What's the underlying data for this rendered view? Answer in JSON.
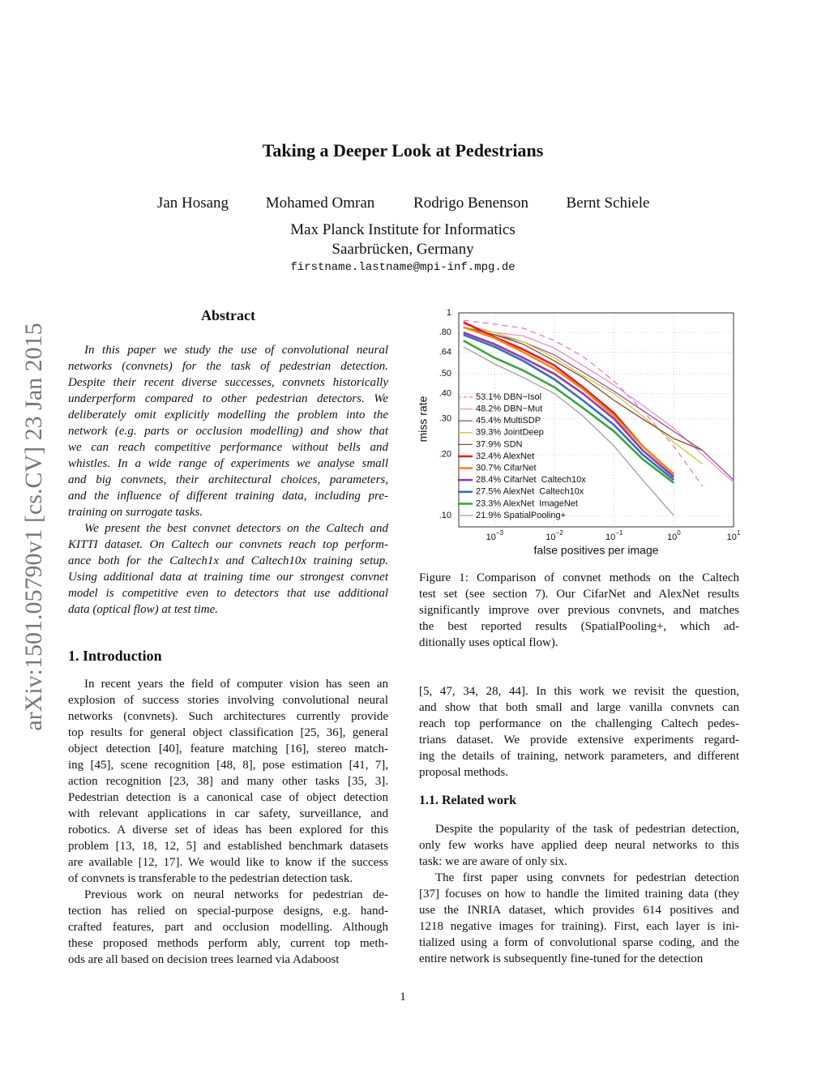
{
  "header": {
    "title": "Taking a Deeper Look at Pedestrians",
    "authors": [
      "Jan Hosang",
      "Mohamed Omran",
      "Rodrigo Benenson",
      "Bernt Schiele"
    ],
    "affiliation": [
      "Max Planck Institute for Informatics",
      "Saarbrücken, Germany"
    ],
    "email": "firstname.lastname@mpi-inf.mpg.de"
  },
  "sidebar": "arXiv:1501.05790v1  [cs.CV]  23 Jan 2015",
  "abstract": {
    "heading": "Abstract",
    "paragraphs": [
      [
        "In this paper we study the use of convolutional neural",
        "networks (convnets) for the task of pedestrian detection.",
        "Despite their recent diverse successes, convnets historically",
        "underperform compared to other pedestrian detectors. We",
        "deliberately omit explicitly modelling the problem into the",
        "network (e.g. parts or occlusion modelling) and show that",
        "we can reach competitive performance without bells and",
        "whistles. In a wide range of experiments we analyse small",
        "and big convnets, their architectural choices, parameters,",
        "and the influence of different training data, including pre-",
        "training on surrogate tasks."
      ],
      [
        "We present the best convnet detectors on the Caltech and",
        "KITTI dataset. On Caltech our convnets reach top perform-",
        "ance both for the Caltech1x and Caltech10x training setup.",
        "Using additional data at training time our strongest convnet",
        "model is competitive even to detectors that use additional",
        "data (optical flow) at test time."
      ]
    ]
  },
  "introduction": {
    "heading": "1. Introduction",
    "paragraphs": [
      [
        "In recent years the field of computer vision has seen an",
        "explosion of success stories involving convolutional neural",
        "networks (convnets). Such architectures currently provide",
        "top results for general object classification [25, 36], general",
        "object detection [40], feature matching [16], stereo match-",
        "ing [45], scene recognition [48, 8], pose estimation [41, 7],",
        "action recognition [23, 38] and many other tasks [35, 3].",
        "Pedestrian detection is a canonical case of object detection",
        "with relevant applications in car safety, surveillance, and",
        "robotics. A diverse set of ideas has been explored for this",
        "problem [13, 18, 12, 5] and established benchmark datasets",
        "are available [12, 17]. We would like to know if the success",
        "of convnets is transferable to the pedestrian detection task."
      ],
      [
        "Previous work on neural networks for pedestrian de-",
        "tection has relied on special-purpose designs, e.g. hand-",
        "crafted features, part and occlusion modelling. Although",
        "these proposed methods perform ably, current top meth-",
        "ods are all based on decision trees learned via Adaboost"
      ],
      [
        "[5, 47, 34, 28, 44]. In this work we revisit the question,",
        "and show that both small and large vanilla convnets can",
        "reach top performance on the challenging Caltech pedes-",
        "trians dataset. We provide extensive experiments regard-",
        "ing the details of training, network parameters, and different",
        "proposal methods."
      ]
    ]
  },
  "figure_caption": [
    "Figure 1: Comparison of convnet methods on the Caltech",
    "test set (see section 7). Our CifarNet and AlexNet results",
    "significantly improve over previous convnets, and matches",
    "the best reported results (SpatialPooling+, which ad-",
    "ditionally uses optical flow)."
  ],
  "related_work": {
    "heading": "1.1. Related work",
    "paragraphs": [
      [
        "Despite the popularity of the task of pedestrian detection,",
        "only few works have applied deep neural networks to this",
        "task: we are aware of only six."
      ],
      [
        "The first paper using convnets for pedestrian detection",
        "[37] focuses on how to handle the limited training data (they",
        "use the INRIA dataset, which provides 614 positives and",
        "1218 negative images for training). First, each layer is ini-",
        "tialized using a form of convolutional sparse coding, and the",
        "entire network is subsequently fine-tuned for the detection"
      ]
    ]
  },
  "page_number": "1",
  "chart_data": {
    "type": "line",
    "x_label": "false positives per image",
    "y_label": "miss rate",
    "x_log": true,
    "y_log": true,
    "grid": true,
    "xlim": [
      0.00025,
      10
    ],
    "xticks": [
      {
        "value": 0.001,
        "label": "10−3"
      },
      {
        "value": 0.01,
        "label": "10−2"
      },
      {
        "value": 0.1,
        "label": "10−1"
      },
      {
        "value": 1,
        "label": "100"
      },
      {
        "value": 10,
        "label": "101"
      }
    ],
    "ylim": [
      0.088,
      1
    ],
    "yticks": [
      1,
      {
        "value": 0.8,
        "label": ".80"
      },
      {
        "value": 0.64,
        "label": ".64"
      },
      {
        "value": 0.5,
        "label": ".50"
      },
      {
        "value": 0.4,
        "label": ".40"
      },
      {
        "value": 0.3,
        "label": ".30"
      },
      {
        "value": 0.2,
        "label": ".20"
      },
      {
        "value": 0.1,
        "label": ".10"
      }
    ],
    "x": [
      0.0003,
      0.001,
      0.003,
      0.01,
      0.03,
      0.1,
      0.3,
      1,
      3,
      10
    ],
    "series": [
      {
        "name": "53.1% DBN−Isol",
        "color": "#e67fbd",
        "line_style": "dashed",
        "values": [
          0.92,
          0.88,
          0.84,
          0.73,
          0.61,
          0.46,
          0.33,
          0.22,
          0.14,
          null
        ]
      },
      {
        "name": "48.2% DBN−Mut",
        "color": "#e592c4",
        "values": [
          0.88,
          0.8,
          0.77,
          0.67,
          0.55,
          0.44,
          0.35,
          0.27,
          0.2,
          0.146
        ]
      },
      {
        "name": "45.4% MultiSDP",
        "color": "#9c4fa8",
        "values": [
          0.85,
          0.78,
          0.72,
          0.62,
          0.51,
          0.41,
          0.33,
          0.26,
          0.21,
          0.15
        ]
      },
      {
        "name": "39.3% JointDeep",
        "color": "#c5cc3c",
        "values": [
          0.85,
          0.8,
          0.72,
          0.6,
          0.49,
          0.4,
          0.31,
          0.23,
          0.18,
          null
        ]
      },
      {
        "name": "37.9% SDN",
        "color": "#8b4a2b",
        "values": [
          0.85,
          0.78,
          0.7,
          0.58,
          0.48,
          0.37,
          0.3,
          0.24,
          0.21,
          null
        ]
      },
      {
        "name": "32.4% AlexNet",
        "color": "#e0202a",
        "values": [
          0.9,
          0.76,
          0.66,
          0.55,
          0.43,
          0.32,
          0.22,
          0.16,
          null,
          null
        ]
      },
      {
        "name": "30.7% CifarNet",
        "color": "#f08a1c",
        "values": [
          0.85,
          0.75,
          0.64,
          0.53,
          0.42,
          0.31,
          0.22,
          0.16,
          null,
          null
        ]
      },
      {
        "name": "28.4% CifarNet  Caltech10x",
        "color": "#8e3fb0",
        "values": [
          0.8,
          0.7,
          0.6,
          0.5,
          0.4,
          0.3,
          0.21,
          0.155,
          null,
          null
        ]
      },
      {
        "name": "27.5% AlexNet  Caltech10x",
        "color": "#3a6fb5",
        "values": [
          0.78,
          0.68,
          0.58,
          0.47,
          0.37,
          0.28,
          0.2,
          0.15,
          null,
          null
        ]
      },
      {
        "name": "23.3% AlexNet  ImageNet",
        "color": "#3aa444",
        "values": [
          0.73,
          0.6,
          0.52,
          0.43,
          0.34,
          0.26,
          0.19,
          0.145,
          null,
          null
        ]
      },
      {
        "name": "21.9% SpatialPooling+",
        "color": "#a0a0a0",
        "values": [
          0.68,
          0.56,
          0.48,
          0.4,
          0.31,
          0.22,
          0.15,
          0.1,
          null,
          null
        ]
      }
    ]
  }
}
